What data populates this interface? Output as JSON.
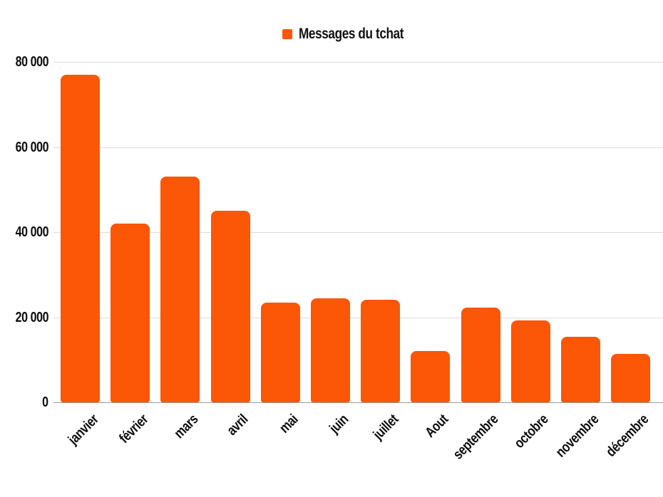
{
  "chart_data": {
    "type": "bar",
    "title": "",
    "legend": "Messages du tchat",
    "legend_position": "top-center",
    "series_name": "Messages du tchat",
    "categories": [
      "janvier",
      "février",
      "mars",
      "avril",
      "mai",
      "juin",
      "juillet",
      "Aout",
      "septembre",
      "octobre",
      "novembre",
      "décembre"
    ],
    "values": [
      77000,
      42000,
      53000,
      45000,
      23400,
      24400,
      24100,
      12000,
      22200,
      19200,
      15400,
      11300
    ],
    "xlabel": "",
    "ylabel": "",
    "ylim": [
      0,
      80000
    ],
    "y_ticks": [
      0,
      20000,
      40000,
      60000,
      80000
    ],
    "y_tick_labels": [
      "0",
      "20 000",
      "40 000",
      "60 000",
      "80 000"
    ],
    "x_tick_rotation_deg": -45,
    "grid": true,
    "colors": {
      "bar": "#FC5607",
      "gridline": "#DCDCDC",
      "axis_line": "#9B9B9B",
      "text": "#0D0D0D",
      "background": "#FFFFFF"
    }
  }
}
